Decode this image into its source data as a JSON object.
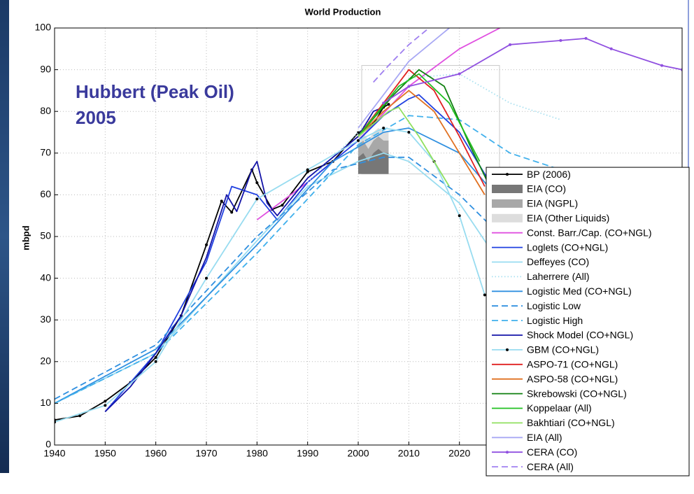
{
  "chart_data": {
    "type": "line",
    "title": "World Production",
    "y_label": "mbpd",
    "annotation": [
      "Hubbert (Peak Oil)",
      "2005"
    ],
    "xlim": [
      1940,
      2064
    ],
    "ylim": [
      0,
      100
    ],
    "xticks": [
      1940,
      1950,
      1960,
      1970,
      1980,
      1990,
      2000,
      2010,
      2020
    ],
    "yticks": [
      0,
      10,
      20,
      30,
      40,
      50,
      60,
      70,
      80,
      90,
      100
    ],
    "grid": true,
    "legend": "lower right",
    "series": [
      {
        "name": "BP (2006)",
        "color": "#000000",
        "marker": true,
        "x": [
          1940,
          1945,
          1950,
          1955,
          1960,
          1965,
          1970,
          1973,
          1975,
          1979,
          1980,
          1983,
          1985,
          1990,
          1995,
          2000,
          2003,
          2005,
          2006
        ],
        "values": [
          6,
          7,
          10.5,
          15,
          21,
          31,
          48,
          58.5,
          55.8,
          66,
          62.9,
          56.5,
          57.5,
          65.5,
          68,
          74.9,
          77,
          81,
          81.7
        ]
      },
      {
        "name": "EIA (CO)",
        "color": "#777777",
        "kind": "area",
        "x": [
          2000,
          2001,
          2002,
          2003,
          2004,
          2005,
          2006
        ],
        "values": [
          69,
          70,
          68,
          70,
          71,
          70,
          70
        ]
      },
      {
        "name": "EIA (NGPL)",
        "color": "#a8a8a8",
        "kind": "area",
        "x": [
          2000,
          2001,
          2002,
          2003,
          2004,
          2005,
          2006
        ],
        "values": [
          72,
          73,
          71,
          73,
          74,
          73,
          73
        ]
      },
      {
        "name": "EIA (Other Liquids)",
        "color": "#dddddd",
        "kind": "area",
        "x": [
          2000,
          2001,
          2002,
          2003,
          2004,
          2005,
          2006
        ],
        "values": [
          74,
          75,
          73,
          75,
          76,
          75,
          75
        ]
      },
      {
        "name": "Const. Barr./Cap. (CO+NGL)",
        "color": "#e050e0",
        "x": [
          1980,
          1990,
          2000,
          2010,
          2020,
          2028
        ],
        "values": [
          54,
          63,
          73,
          86,
          95,
          100
        ]
      },
      {
        "name": "Loglets (CO+NGL)",
        "color": "#2040e0",
        "x": [
          1950,
          1960,
          1970,
          1975,
          1980,
          1984,
          1990,
          2000,
          2005,
          2010,
          2012,
          2020,
          2030
        ],
        "values": [
          8,
          22,
          44,
          62,
          60,
          54,
          63,
          73,
          79,
          83,
          84,
          75,
          55
        ]
      },
      {
        "name": "Deffeyes (CO)",
        "color": "#98dcf0",
        "x": [
          1940,
          1960,
          1980,
          1990,
          2000,
          2005,
          2010,
          2020,
          2030
        ],
        "values": [
          10,
          22,
          49,
          62,
          68,
          70,
          68,
          58,
          40
        ]
      },
      {
        "name": "Laherrere (All)",
        "color": "#a8e0f0",
        "style": "dotted",
        "x": [
          1990,
          2000,
          2010,
          2020,
          2030,
          2040
        ],
        "values": [
          63,
          75,
          88,
          89,
          82,
          78
        ]
      },
      {
        "name": "Logistic Med (CO+NGL)",
        "color": "#3090e0",
        "x": [
          1940,
          1960,
          1980,
          1995,
          2005,
          2010,
          2020,
          2030
        ],
        "values": [
          10,
          23,
          48,
          68,
          75,
          76,
          70,
          56
        ]
      },
      {
        "name": "Logistic Low",
        "color": "#3090e0",
        "style": "dashed",
        "x": [
          1940,
          1960,
          1980,
          1995,
          2005,
          2010,
          2020,
          2030
        ],
        "values": [
          11,
          24,
          50,
          66,
          69,
          69,
          60,
          48
        ]
      },
      {
        "name": "Logistic High",
        "color": "#40b0ec",
        "style": "dashed",
        "x": [
          1940,
          1960,
          1980,
          2000,
          2010,
          2020,
          2030,
          2040,
          2048
        ],
        "values": [
          10,
          22,
          46,
          72,
          79,
          78,
          70,
          66,
          61
        ]
      },
      {
        "name": "Shock Model (CO+NGL)",
        "color": "#1414a8",
        "x": [
          1950,
          1955,
          1960,
          1965,
          1970,
          1974,
          1976,
          1979,
          1980,
          1982,
          1984,
          1990,
          2000,
          2003,
          2005
        ],
        "values": [
          8,
          14,
          22,
          31,
          45,
          60,
          56,
          66,
          68,
          58,
          55,
          64,
          74,
          80,
          81
        ]
      },
      {
        "name": "GBM (CO+NGL)",
        "color": "#98dcf0",
        "marker": true,
        "x": [
          1940,
          1950,
          1960,
          1970,
          1980,
          1990,
          2000,
          2005,
          2010,
          2015,
          2020,
          2025
        ],
        "values": [
          5.5,
          9.5,
          20,
          40,
          59,
          66,
          73,
          76,
          75,
          68,
          55,
          36
        ]
      },
      {
        "name": "ASPO-71 (CO+NGL)",
        "color": "#e02020",
        "x": [
          2000,
          2005,
          2010,
          2015,
          2020,
          2025
        ],
        "values": [
          74,
          82,
          90,
          85,
          74,
          62
        ]
      },
      {
        "name": "ASPO-58 (CO+NGL)",
        "color": "#e07020",
        "x": [
          2000,
          2005,
          2010,
          2015,
          2020,
          2025
        ],
        "values": [
          74,
          80,
          85,
          80,
          70,
          60
        ]
      },
      {
        "name": "Skrebowski (CO+NGL)",
        "color": "#108010",
        "x": [
          2000,
          2007,
          2012,
          2017,
          2022,
          2026
        ],
        "values": [
          74,
          84,
          90,
          86,
          72,
          62
        ]
      },
      {
        "name": "Koppelaar (All)",
        "color": "#20c020",
        "x": [
          2000,
          2008,
          2012,
          2018,
          2024
        ],
        "values": [
          74,
          86,
          89,
          82,
          68
        ]
      },
      {
        "name": "Bakhtiari (CO+NGL)",
        "color": "#90e060",
        "x": [
          2000,
          2006,
          2008,
          2012,
          2018
        ],
        "values": [
          74,
          80,
          81,
          74,
          62
        ]
      },
      {
        "name": "EIA (All)",
        "color": "#a8a8f4",
        "x": [
          2000,
          2005,
          2010,
          2018,
          2022
        ],
        "values": [
          76,
          84,
          92,
          100,
          103
        ]
      },
      {
        "name": "CERA (CO)",
        "color": "#9050e0",
        "marker": true,
        "x": [
          2005,
          2010,
          2020,
          2030,
          2040,
          2045,
          2050,
          2060,
          2064
        ],
        "values": [
          82,
          86,
          89,
          96,
          97,
          97.5,
          95,
          91,
          90
        ]
      },
      {
        "name": "CERA (All)",
        "color": "#a080f0",
        "style": "dashed",
        "x": [
          2003,
          2006,
          2010,
          2015
        ],
        "values": [
          87,
          91,
          96,
          101
        ]
      }
    ]
  }
}
